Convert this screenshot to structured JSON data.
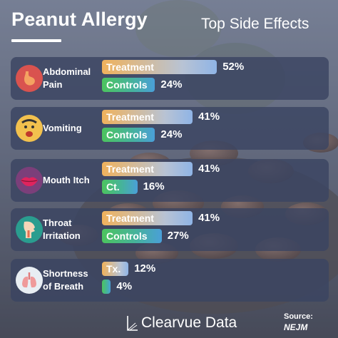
{
  "header": {
    "title": "Peanut Allergy",
    "subtitle": "Top Side Effects"
  },
  "footer": {
    "brand": "Clearvue Data",
    "source_label": "Source:",
    "source_name": "NEJM"
  },
  "colors": {
    "treatment_start": "#f0b25c",
    "treatment_end": "#8fb4e6",
    "controls_start": "#4cc45e",
    "controls_end": "#4a9fd8",
    "panel": "#3a4462"
  },
  "chart_data": {
    "type": "bar",
    "orientation": "horizontal",
    "title": "Peanut Allergy",
    "subtitle": "Top Side Effects",
    "unit": "%",
    "categories": [
      "Abdominal Pain",
      "Vomiting",
      "Mouth Itch",
      "Throat Irritation",
      "Shortness of Breath"
    ],
    "category_labels": [
      "Abdominal\nPain",
      "Vomiting",
      "Mouth Itch",
      "Throat\nIrritation",
      "Shortness\nof Breath"
    ],
    "icons": [
      "stomach-icon",
      "vomiting-face-icon",
      "lips-icon",
      "throat-icon",
      "lungs-icon"
    ],
    "series": [
      {
        "name": "Treatment",
        "bar_labels": [
          "Treatment",
          "Treatment",
          "Treatment",
          "Treatment",
          "Tx."
        ],
        "values": [
          52,
          41,
          41,
          41,
          12
        ],
        "value_labels": [
          "52%",
          "41%",
          "41%",
          "41%",
          "12%"
        ]
      },
      {
        "name": "Controls",
        "bar_labels": [
          "Controls",
          "Controls",
          "Ct.",
          "Controls",
          ""
        ],
        "values": [
          24,
          24,
          16,
          27,
          4
        ],
        "value_labels": [
          "24%",
          "24%",
          "16%",
          "27%",
          "4%"
        ]
      }
    ],
    "xlim": [
      0,
      60
    ],
    "grid": false,
    "legend": "none"
  }
}
